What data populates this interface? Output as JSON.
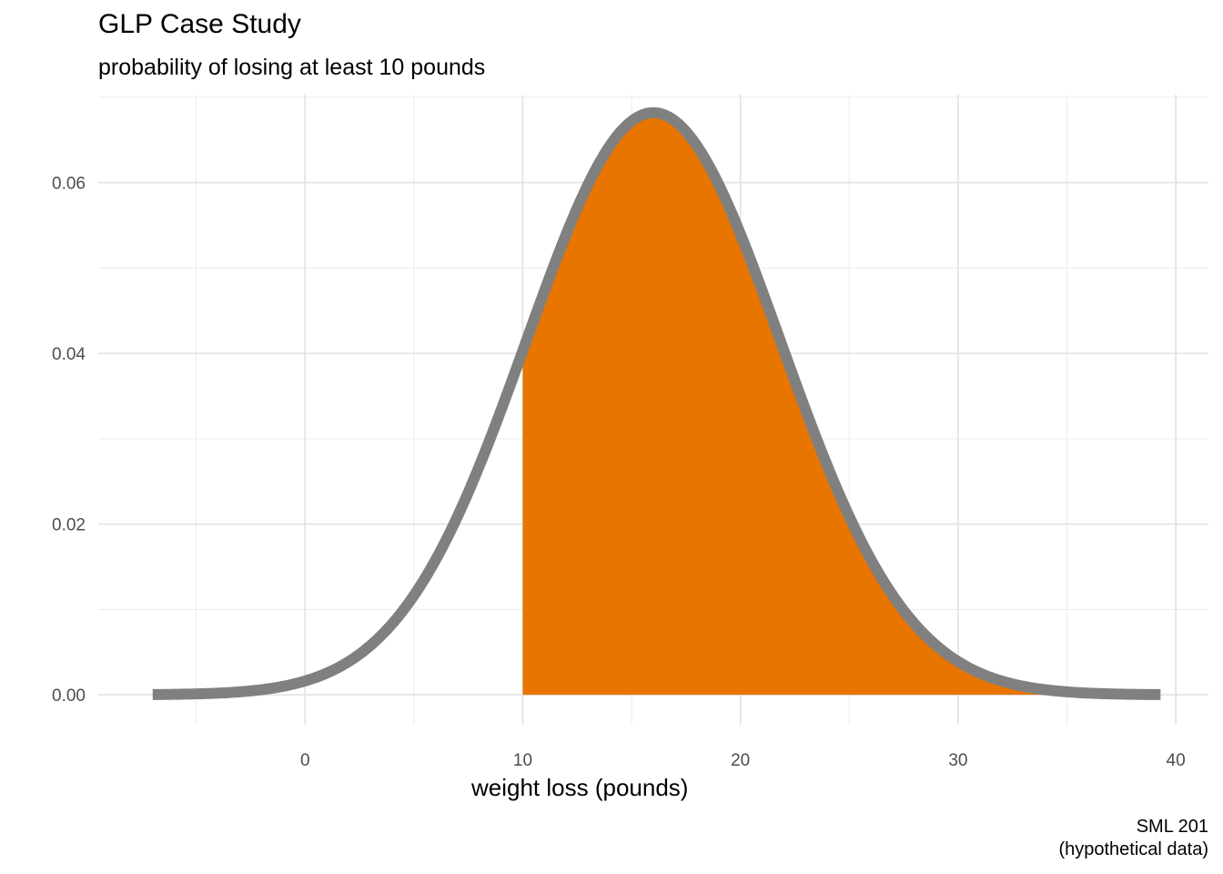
{
  "chart_data": {
    "type": "area",
    "title": "GLP Case Study",
    "subtitle": "probability of losing at least 10 pounds",
    "xlabel": "weight loss (pounds)",
    "ylabel": "",
    "caption_lines": [
      "SML 201",
      "(hypothetical data)"
    ],
    "x_ticks": [
      0,
      10,
      20,
      30,
      40
    ],
    "y_ticks": [
      0.0,
      0.02,
      0.04,
      0.06
    ],
    "y_tick_labels": [
      "0.00",
      "0.02",
      "0.04",
      "0.06"
    ],
    "xlim": [
      -9.5,
      41.5
    ],
    "ylim": [
      -0.0035,
      0.0703
    ],
    "grid": true,
    "distribution": {
      "family": "normal",
      "mean": 16,
      "sd": 5.85
    },
    "curve_x_range": [
      -7,
      39.3
    ],
    "shaded_x_range": [
      10,
      39.3
    ],
    "series": [
      {
        "role": "density-curve",
        "color": "#808080"
      },
      {
        "role": "shaded-probability-area",
        "color": "#E87500"
      }
    ]
  }
}
